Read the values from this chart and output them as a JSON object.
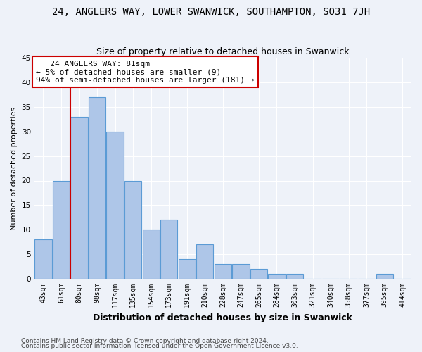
{
  "title": "24, ANGLERS WAY, LOWER SWANWICK, SOUTHAMPTON, SO31 7JH",
  "subtitle": "Size of property relative to detached houses in Swanwick",
  "xlabel": "Distribution of detached houses by size in Swanwick",
  "ylabel": "Number of detached properties",
  "categories": [
    "43sqm",
    "61sqm",
    "80sqm",
    "98sqm",
    "117sqm",
    "135sqm",
    "154sqm",
    "173sqm",
    "191sqm",
    "210sqm",
    "228sqm",
    "247sqm",
    "265sqm",
    "284sqm",
    "303sqm",
    "321sqm",
    "340sqm",
    "358sqm",
    "377sqm",
    "395sqm",
    "414sqm"
  ],
  "values": [
    8,
    20,
    33,
    37,
    30,
    20,
    10,
    12,
    4,
    7,
    3,
    3,
    2,
    1,
    1,
    0,
    0,
    0,
    0,
    1,
    0
  ],
  "bar_color": "#aec6e8",
  "bar_edge_color": "#5b9bd5",
  "vline_x_index": 1.5,
  "vline_color": "#cc0000",
  "annotation_line1": "   24 ANGLERS WAY: 81sqm",
  "annotation_line2": "← 5% of detached houses are smaller (9)",
  "annotation_line3": "94% of semi-detached houses are larger (181) →",
  "annotation_box_color": "#ffffff",
  "annotation_box_edge": "#cc0000",
  "ylim": [
    0,
    45
  ],
  "yticks": [
    0,
    5,
    10,
    15,
    20,
    25,
    30,
    35,
    40,
    45
  ],
  "footer_line1": "Contains HM Land Registry data © Crown copyright and database right 2024.",
  "footer_line2": "Contains public sector information licensed under the Open Government Licence v3.0.",
  "background_color": "#eef2f9",
  "grid_color": "#ffffff",
  "title_fontsize": 10,
  "subtitle_fontsize": 9,
  "tick_fontsize": 7,
  "ylabel_fontsize": 8,
  "xlabel_fontsize": 9,
  "footer_fontsize": 6.5
}
